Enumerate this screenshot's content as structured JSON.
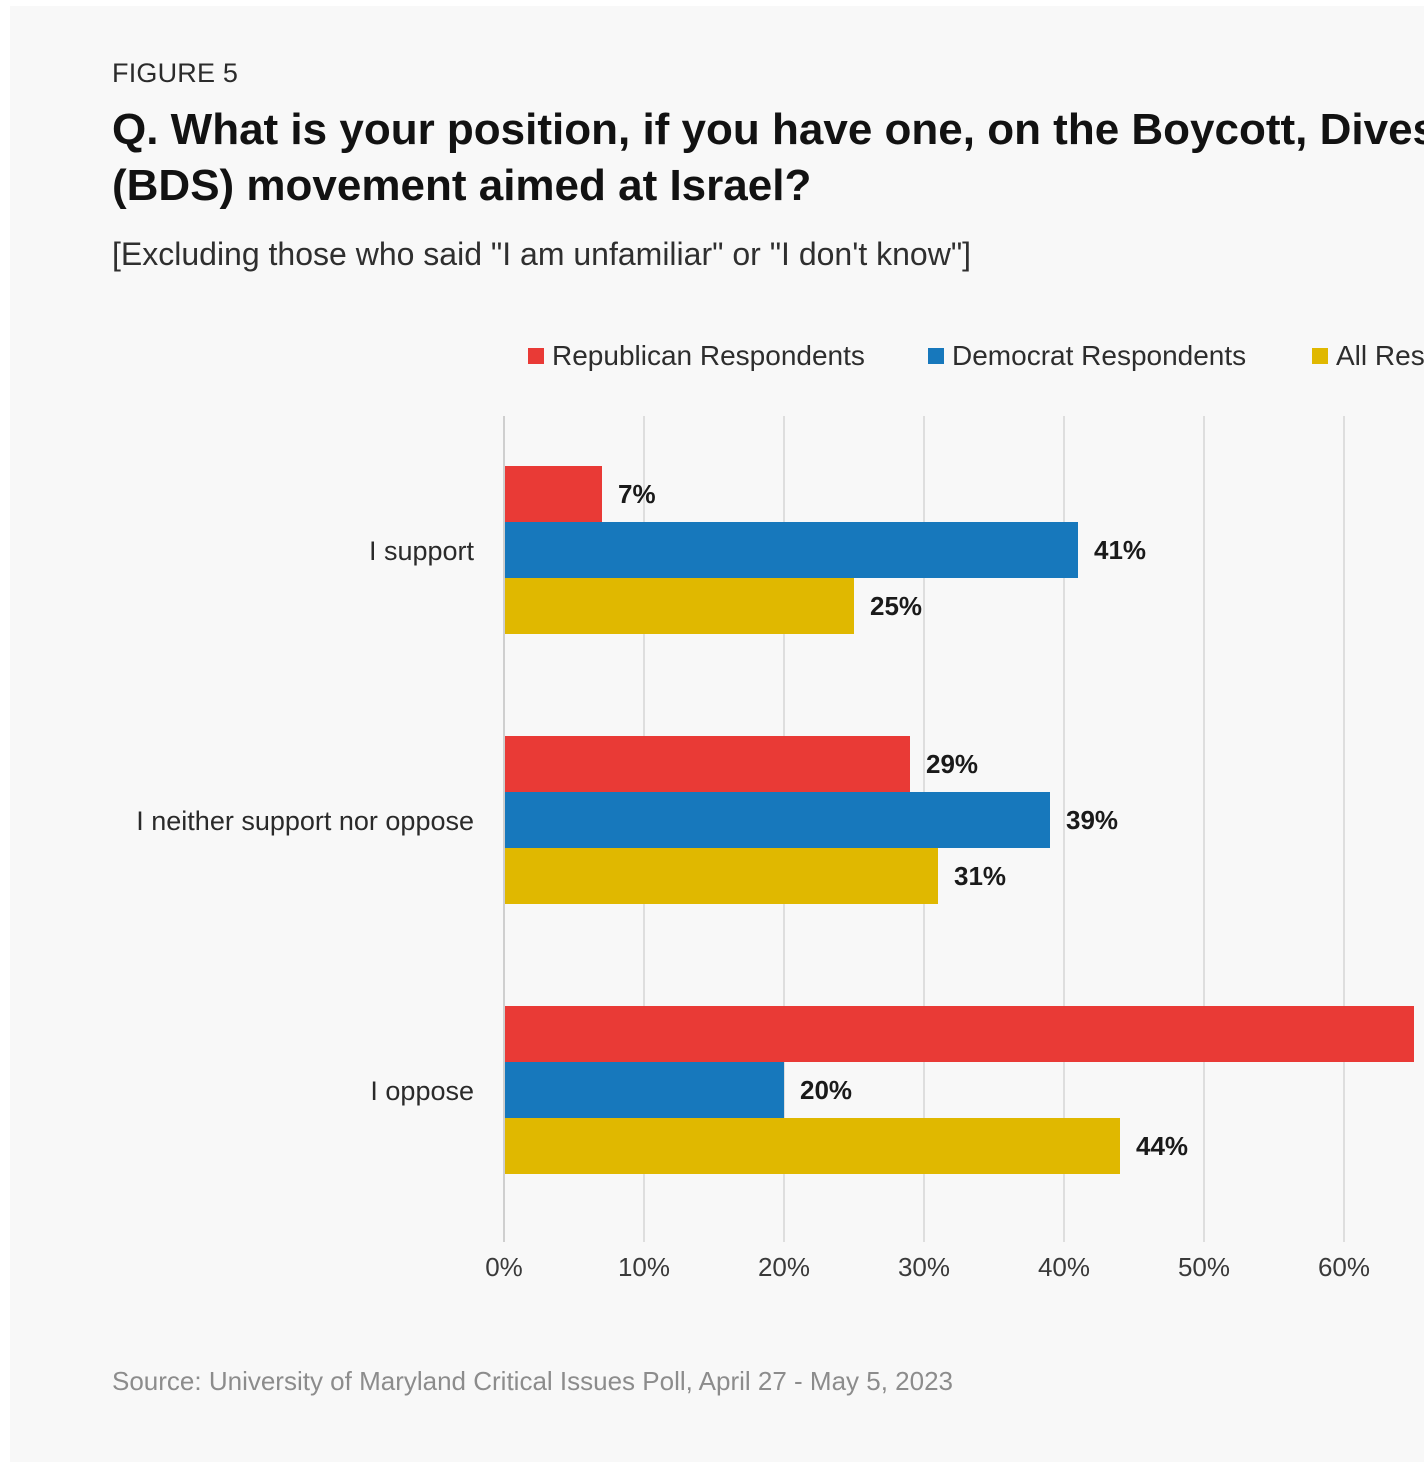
{
  "figure_label": "FIGURE 5",
  "title_lines": [
    "Q. What is your position, if you have one, on the Boycott, Divest",
    "(BDS) movement aimed at Israel?"
  ],
  "subtitle": "[Excluding those who said \"I am unfamiliar\" or \"I don't know\"]",
  "source": "Source: University of Maryland Critical Issues Poll, April 27 - May 5, 2023",
  "colors": {
    "republican": "#e93a36",
    "democrat": "#1778bc",
    "all": "#e0b800",
    "grid": "#dedede",
    "background": "#f8f8f8"
  },
  "chart_data": {
    "type": "bar",
    "orientation": "horizontal",
    "categories": [
      "I support",
      "I neither support nor oppose",
      "I oppose"
    ],
    "series": [
      {
        "name": "Republican Respondents",
        "color": "#e93a36",
        "values": [
          7,
          29,
          65
        ],
        "labels": [
          "7%",
          "29%",
          ""
        ]
      },
      {
        "name": "Democrat Respondents",
        "color": "#1778bc",
        "values": [
          41,
          39,
          20
        ],
        "labels": [
          "41%",
          "39%",
          "20%"
        ]
      },
      {
        "name": "All Res",
        "color": "#e0b800",
        "values": [
          25,
          31,
          44
        ],
        "labels": [
          "25%",
          "31%",
          "44%"
        ]
      }
    ],
    "x_ticks": [
      0,
      10,
      20,
      30,
      40,
      50,
      60
    ],
    "x_tick_labels": [
      "0%",
      "10%",
      "20%",
      "30%",
      "40%",
      "50%",
      "60%"
    ],
    "xlim": [
      0,
      70
    ],
    "grid": true,
    "legend_position": "top"
  }
}
